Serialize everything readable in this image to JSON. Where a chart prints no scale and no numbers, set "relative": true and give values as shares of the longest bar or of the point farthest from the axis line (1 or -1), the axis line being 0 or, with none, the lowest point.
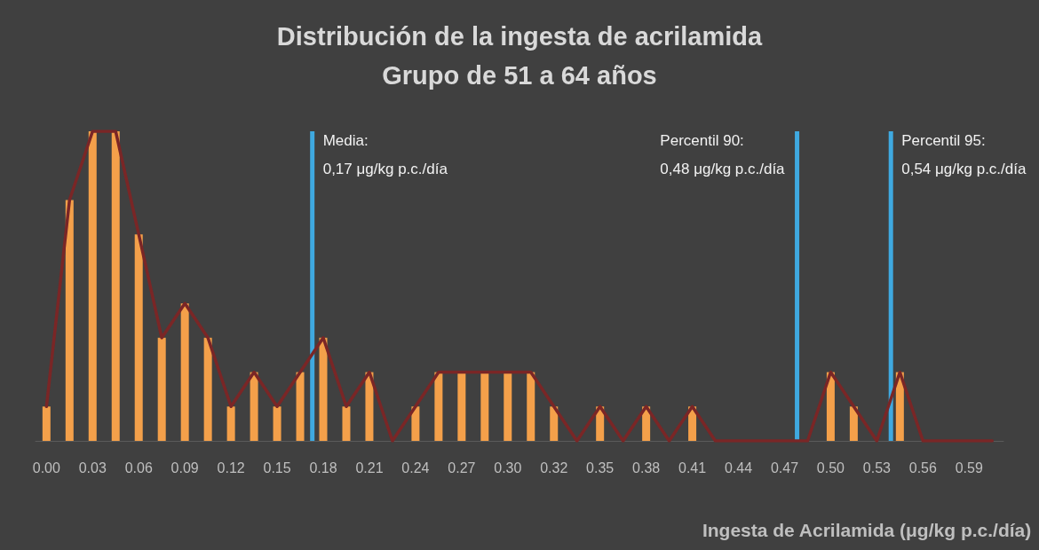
{
  "chart_data": {
    "type": "bar",
    "title": "Distribución de la ingesta de acrilamida\nGrupo de 51 a 64 años",
    "xlabel": "Ingesta de Acrilamida (μg/kg p.c./día)",
    "relative": true,
    "x": [
      0,
      0.01475,
      0.0295,
      0.04425,
      0.059,
      0.07375,
      0.0885,
      0.10325,
      0.118,
      0.13275,
      0.1475,
      0.16225,
      0.177,
      0.19175,
      0.2065,
      0.22125,
      0.236,
      0.25075,
      0.2655,
      0.28025,
      0.295,
      0.30975,
      0.3245,
      0.33925,
      0.354,
      0.36875,
      0.3835,
      0.39825,
      0.413,
      0.42775,
      0.4425,
      0.45725,
      0.472,
      0.48675,
      0.5015,
      0.51625,
      0.531,
      0.54575,
      0.5605,
      0.57525,
      0.59,
      0.60475
    ],
    "xlim": [
      -0.007,
      0.612
    ],
    "xticks": [
      {
        "value": 0,
        "label": "0.00"
      },
      {
        "value": 0.0295,
        "label": "0.03"
      },
      {
        "value": 0.059,
        "label": "0.06"
      },
      {
        "value": 0.0885,
        "label": "0.09"
      },
      {
        "value": 0.118,
        "label": "0.12"
      },
      {
        "value": 0.1475,
        "label": "0.15"
      },
      {
        "value": 0.177,
        "label": "0.18"
      },
      {
        "value": 0.2065,
        "label": "0.21"
      },
      {
        "value": 0.236,
        "label": "0.24"
      },
      {
        "value": 0.2655,
        "label": "0.27"
      },
      {
        "value": 0.295,
        "label": "0.30"
      },
      {
        "value": 0.3245,
        "label": "0.32"
      },
      {
        "value": 0.354,
        "label": "0.35"
      },
      {
        "value": 0.3835,
        "label": "0.38"
      },
      {
        "value": 0.413,
        "label": "0.41"
      },
      {
        "value": 0.4425,
        "label": "0.44"
      },
      {
        "value": 0.472,
        "label": "0.47"
      },
      {
        "value": 0.5015,
        "label": "0.50"
      },
      {
        "value": 0.531,
        "label": "0.53"
      },
      {
        "value": 0.5605,
        "label": "0.56"
      },
      {
        "value": 0.59,
        "label": "0.59"
      }
    ],
    "series": [
      {
        "color": "#f4a04a",
        "values": [
          0.111,
          0.778,
          1,
          1,
          0.667,
          0.333,
          0.444,
          0.333,
          0.111,
          0.222,
          0.111,
          0.222,
          0.333,
          0.111,
          0.222,
          0,
          0.111,
          0.222,
          0.222,
          0.222,
          0.222,
          0.222,
          0.111,
          0,
          0.111,
          0,
          0.111,
          0,
          0.111,
          0,
          0,
          0,
          0,
          0,
          0.222,
          0.111,
          0,
          0.222,
          0,
          0,
          0,
          0
        ]
      },
      {
        "type": "line",
        "color": "#7a2626",
        "marker": "none",
        "values": [
          0.111,
          0.778,
          1,
          1,
          0.667,
          0.333,
          0.444,
          0.333,
          0.111,
          0.222,
          0.111,
          0.222,
          0.333,
          0.111,
          0.222,
          0,
          0.111,
          0.222,
          0.222,
          0.222,
          0.222,
          0.222,
          0.111,
          0,
          0.111,
          0,
          0.111,
          0,
          0.111,
          0,
          0,
          0,
          0,
          0,
          0.222,
          0.111,
          0,
          0.222,
          0,
          0,
          0,
          0
        ]
      }
    ],
    "ref_lines": [
      {
        "axis": "x",
        "value": 0.17,
        "label": "Media:\n0,17 μg/kg p.c./día",
        "color": "#3fa9e0"
      },
      {
        "axis": "x",
        "value": 0.48,
        "label": "Percentil 90:\n0,48 μg/kg p.c./día",
        "color": "#3fa9e0"
      },
      {
        "axis": "x",
        "value": 0.54,
        "label": "Percentil 95:\n0,54 μg/kg p.c./día",
        "color": "#3fa9e0"
      }
    ],
    "grid": false
  }
}
